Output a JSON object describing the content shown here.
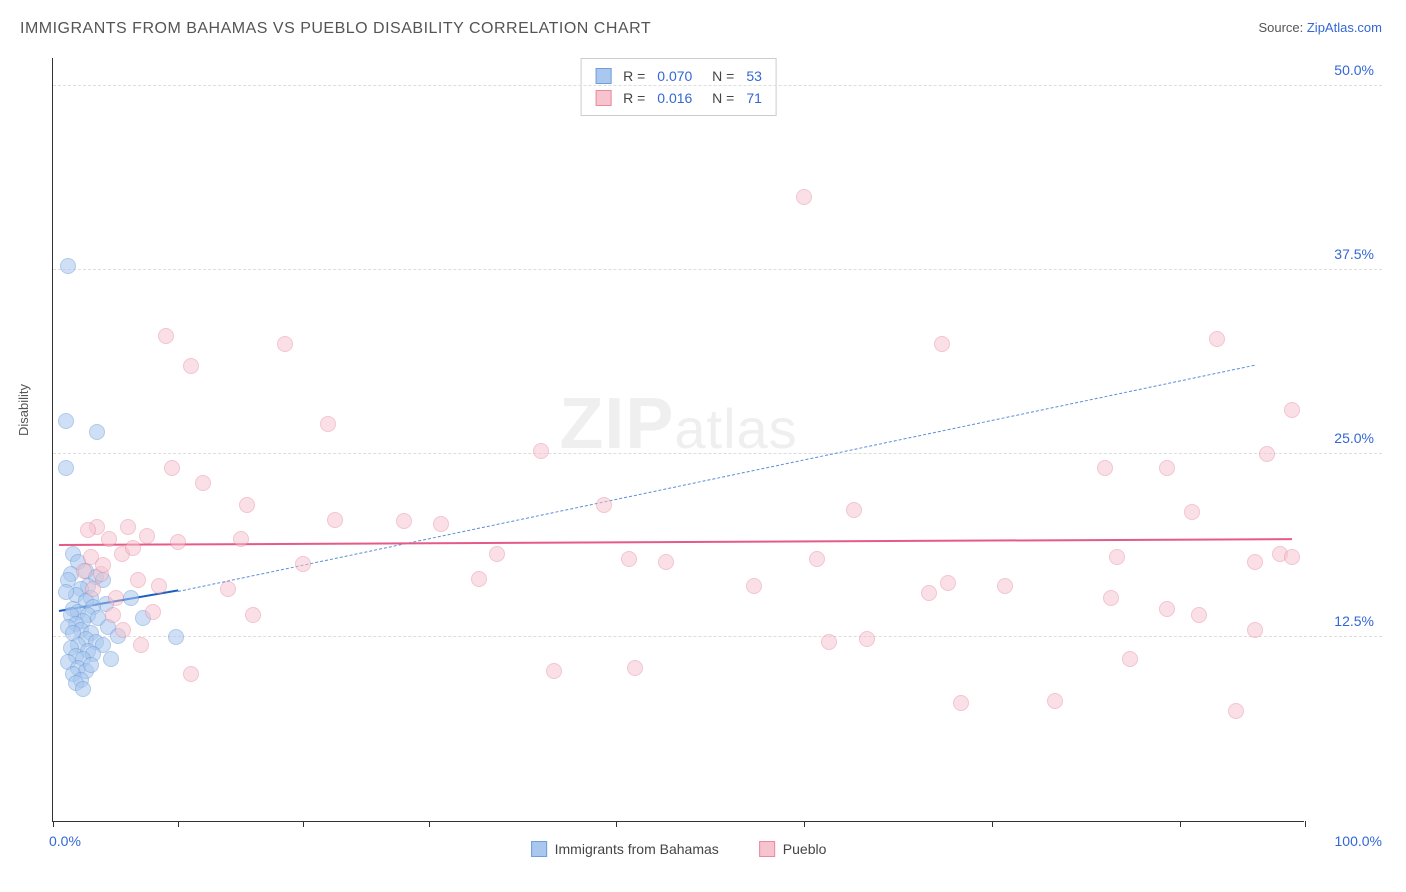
{
  "title": "IMMIGRANTS FROM BAHAMAS VS PUEBLO DISABILITY CORRELATION CHART",
  "source_label": "Source: ",
  "source_link": "ZipAtlas.com",
  "ylabel": "Disability",
  "watermark_a": "ZIP",
  "watermark_b": "atlas",
  "chart": {
    "type": "scatter",
    "xlim": [
      0,
      100
    ],
    "ylim": [
      0,
      52
    ],
    "yticks": [
      12.5,
      25.0,
      37.5,
      50.0
    ],
    "ytick_labels": [
      "12.5%",
      "25.0%",
      "37.5%",
      "50.0%"
    ],
    "xticks": [
      0,
      10,
      20,
      30,
      45,
      60,
      75,
      90,
      100
    ],
    "xaxis_left_label": "0.0%",
    "xaxis_right_label": "100.0%",
    "grid_color": "#dddddd",
    "axis_color": "#333333",
    "marker_radius": 8,
    "series": [
      {
        "name": "Immigrants from Bahamas",
        "fill": "#a9c7ef",
        "stroke": "#6f9fd8",
        "fill_opacity": 0.55,
        "R": "0.070",
        "N": "53",
        "trend_solid": {
          "x1": 0.5,
          "y1": 14.2,
          "x2": 10,
          "y2": 15.6,
          "color": "#1b5fc1",
          "width": 2.5
        },
        "trend_dashed": {
          "x1": 10,
          "y1": 15.6,
          "x2": 96,
          "y2": 31.0,
          "color": "#5a8fd6"
        },
        "points": [
          [
            1.2,
            37.8
          ],
          [
            1.0,
            27.2
          ],
          [
            3.5,
            26.5
          ],
          [
            1.0,
            24.0
          ],
          [
            1.6,
            18.2
          ],
          [
            2.0,
            17.6
          ],
          [
            2.6,
            17.0
          ],
          [
            1.4,
            16.8
          ],
          [
            3.4,
            16.6
          ],
          [
            4.0,
            16.4
          ],
          [
            2.8,
            16.0
          ],
          [
            1.2,
            16.4
          ],
          [
            2.2,
            15.8
          ],
          [
            1.8,
            15.4
          ],
          [
            3.0,
            15.2
          ],
          [
            1.0,
            15.6
          ],
          [
            2.6,
            15.0
          ],
          [
            4.2,
            14.8
          ],
          [
            3.2,
            14.6
          ],
          [
            1.6,
            14.4
          ],
          [
            2.0,
            14.2
          ],
          [
            2.8,
            14.0
          ],
          [
            1.4,
            14.0
          ],
          [
            3.6,
            13.8
          ],
          [
            2.4,
            13.6
          ],
          [
            1.8,
            13.4
          ],
          [
            4.4,
            13.2
          ],
          [
            2.2,
            13.0
          ],
          [
            1.2,
            13.2
          ],
          [
            3.0,
            12.8
          ],
          [
            5.2,
            12.6
          ],
          [
            7.2,
            13.8
          ],
          [
            9.8,
            12.5
          ],
          [
            2.6,
            12.4
          ],
          [
            1.6,
            12.8
          ],
          [
            3.4,
            12.2
          ],
          [
            4.0,
            12.0
          ],
          [
            2.0,
            12.0
          ],
          [
            1.4,
            11.8
          ],
          [
            2.8,
            11.6
          ],
          [
            3.2,
            11.4
          ],
          [
            1.8,
            11.2
          ],
          [
            2.4,
            11.0
          ],
          [
            4.6,
            11.0
          ],
          [
            1.2,
            10.8
          ],
          [
            2.0,
            10.4
          ],
          [
            2.6,
            10.2
          ],
          [
            3.0,
            10.6
          ],
          [
            1.6,
            10.0
          ],
          [
            2.2,
            9.6
          ],
          [
            1.8,
            9.4
          ],
          [
            2.4,
            9.0
          ],
          [
            6.2,
            15.2
          ]
        ]
      },
      {
        "name": "Pueblo",
        "fill": "#f6c3ce",
        "stroke": "#e88ba0",
        "fill_opacity": 0.5,
        "R": "0.016",
        "N": "71",
        "trend_solid": {
          "x1": 0.5,
          "y1": 18.7,
          "x2": 99,
          "y2": 19.1,
          "color": "#e65a87",
          "width": 2.5
        },
        "points": [
          [
            60.0,
            42.5
          ],
          [
            9.0,
            33.0
          ],
          [
            18.5,
            32.5
          ],
          [
            11.0,
            31.0
          ],
          [
            71.0,
            32.5
          ],
          [
            93.0,
            32.8
          ],
          [
            22.0,
            27.0
          ],
          [
            99.0,
            28.0
          ],
          [
            97.0,
            25.0
          ],
          [
            39.0,
            25.2
          ],
          [
            44.0,
            21.5
          ],
          [
            84.0,
            24.0
          ],
          [
            89.0,
            24.0
          ],
          [
            91.0,
            21.0
          ],
          [
            9.5,
            24.0
          ],
          [
            12.0,
            23.0
          ],
          [
            15.5,
            21.5
          ],
          [
            64.0,
            21.2
          ],
          [
            22.5,
            20.5
          ],
          [
            28.0,
            20.4
          ],
          [
            31.0,
            20.2
          ],
          [
            4.5,
            19.2
          ],
          [
            7.5,
            19.4
          ],
          [
            10.0,
            19.0
          ],
          [
            15.0,
            19.2
          ],
          [
            5.5,
            18.2
          ],
          [
            3.0,
            18.0
          ],
          [
            3.5,
            20.0
          ],
          [
            6.0,
            20.0
          ],
          [
            35.5,
            18.2
          ],
          [
            46.0,
            17.8
          ],
          [
            49.0,
            17.6
          ],
          [
            61.0,
            17.8
          ],
          [
            85.0,
            18.0
          ],
          [
            98.0,
            18.2
          ],
          [
            96.0,
            17.6
          ],
          [
            99.0,
            18.0
          ],
          [
            3.8,
            16.8
          ],
          [
            6.8,
            16.4
          ],
          [
            8.5,
            16.0
          ],
          [
            5.0,
            15.2
          ],
          [
            14.0,
            15.8
          ],
          [
            71.5,
            16.2
          ],
          [
            76.0,
            16.0
          ],
          [
            70.0,
            15.5
          ],
          [
            84.5,
            15.2
          ],
          [
            8.0,
            14.2
          ],
          [
            16.0,
            14.0
          ],
          [
            89.0,
            14.4
          ],
          [
            91.5,
            14.0
          ],
          [
            7.0,
            12.0
          ],
          [
            62.0,
            12.2
          ],
          [
            65.0,
            12.4
          ],
          [
            96.0,
            13.0
          ],
          [
            11.0,
            10.0
          ],
          [
            40.0,
            10.2
          ],
          [
            46.5,
            10.4
          ],
          [
            86.0,
            11.0
          ],
          [
            72.5,
            8.0
          ],
          [
            80.0,
            8.2
          ],
          [
            94.5,
            7.5
          ],
          [
            2.5,
            17.0
          ],
          [
            4.0,
            17.4
          ],
          [
            3.2,
            15.8
          ],
          [
            4.8,
            14.0
          ],
          [
            5.6,
            13.0
          ],
          [
            2.8,
            19.8
          ],
          [
            6.4,
            18.6
          ],
          [
            56.0,
            16.0
          ],
          [
            34.0,
            16.5
          ],
          [
            20.0,
            17.5
          ]
        ]
      }
    ],
    "bottom_legend": [
      {
        "label": "Immigrants from Bahamas",
        "fill": "#a9c7ef",
        "stroke": "#6f9fd8"
      },
      {
        "label": "Pueblo",
        "fill": "#f6c3ce",
        "stroke": "#e88ba0"
      }
    ]
  }
}
